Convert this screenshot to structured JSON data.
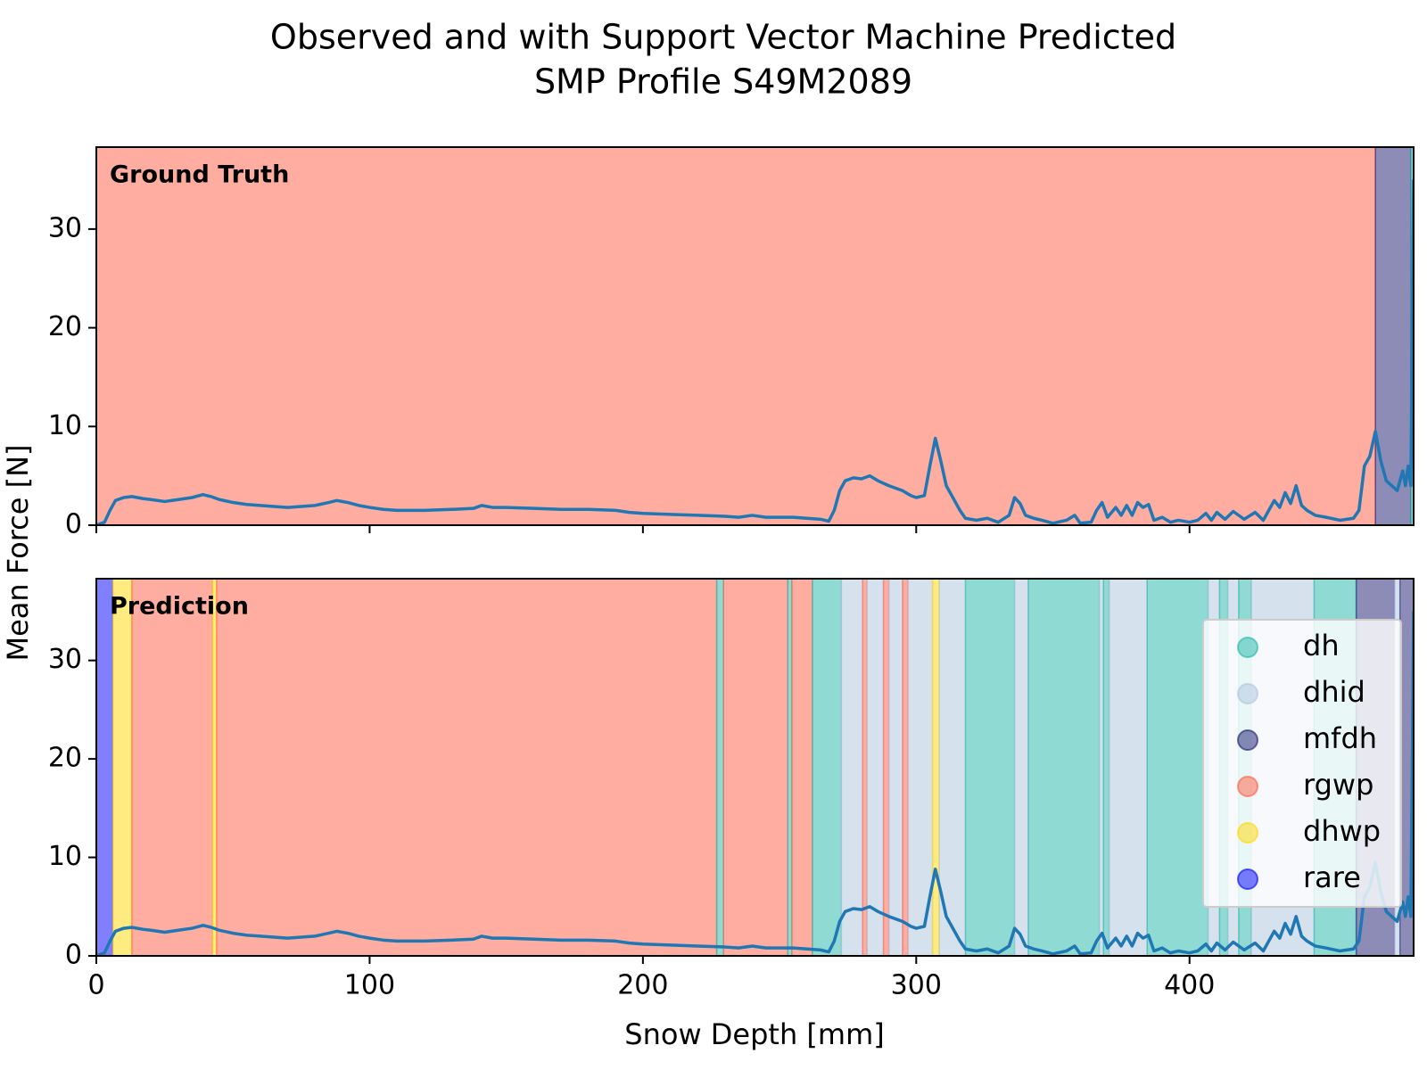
{
  "chart_data": {
    "type": "line",
    "title": [
      "Observed and with Support Vector Machine Predicted",
      "SMP Profile S49M2089"
    ],
    "xlabel": "Snow Depth [mm]",
    "ylabel": "Mean Force [N]",
    "xlim": [
      0,
      482
    ],
    "xticks": [
      0,
      100,
      200,
      300,
      400
    ],
    "ylim": [
      0,
      38.3
    ],
    "yticks": [
      0,
      10,
      20,
      30
    ],
    "x": [
      0,
      3,
      5,
      7,
      10,
      13,
      17,
      20,
      25,
      30,
      35,
      39,
      42,
      45,
      50,
      55,
      60,
      65,
      70,
      75,
      80,
      85,
      88,
      92,
      96,
      100,
      105,
      110,
      120,
      130,
      138,
      141,
      145,
      150,
      160,
      170,
      180,
      190,
      195,
      200,
      210,
      220,
      230,
      235,
      240,
      245,
      250,
      255,
      260,
      265,
      268,
      270,
      272,
      274,
      277,
      280,
      283,
      286,
      290,
      295,
      298,
      300,
      303,
      305,
      307,
      309,
      311,
      314,
      316,
      318,
      322,
      326,
      330,
      334,
      336,
      338,
      340,
      343,
      346,
      350,
      355,
      358,
      360,
      364,
      366,
      368,
      370,
      373,
      375,
      377,
      379,
      381,
      383,
      385,
      387,
      390,
      393,
      396,
      400,
      403,
      406,
      408,
      410,
      413,
      416,
      420,
      424,
      427,
      429,
      431,
      433,
      435,
      437,
      439,
      441,
      443,
      446,
      450,
      455,
      460,
      462,
      464,
      466,
      468,
      470,
      472,
      474,
      476,
      478,
      479,
      480,
      481,
      482
    ],
    "series": [
      {
        "color": "#1f77b4",
        "values": [
          0,
          0.3,
          1.5,
          2.5,
          2.8,
          2.9,
          2.7,
          2.6,
          2.4,
          2.6,
          2.8,
          3.1,
          2.9,
          2.6,
          2.3,
          2.1,
          2,
          1.9,
          1.8,
          1.9,
          2,
          2.3,
          2.5,
          2.3,
          2,
          1.8,
          1.6,
          1.5,
          1.5,
          1.6,
          1.7,
          2,
          1.8,
          1.8,
          1.7,
          1.6,
          1.6,
          1.5,
          1.3,
          1.2,
          1.1,
          1,
          0.9,
          0.8,
          1,
          0.8,
          0.8,
          0.8,
          0.7,
          0.6,
          0.4,
          1.5,
          3.5,
          4.5,
          4.8,
          4.7,
          5,
          4.5,
          4,
          3.5,
          3,
          2.8,
          3,
          6,
          8.8,
          6.5,
          4,
          2.5,
          1.5,
          0.7,
          0.5,
          0.7,
          0.3,
          1,
          2.8,
          2.2,
          1,
          0.7,
          0.5,
          0.2,
          0.5,
          1,
          0.2,
          0.3,
          1.5,
          2.3,
          0.8,
          1.8,
          1,
          2,
          1,
          2.3,
          1.8,
          2.1,
          0.5,
          0.8,
          0.3,
          0.5,
          0.3,
          0.5,
          1.2,
          0.5,
          1.3,
          0.6,
          1.4,
          0.6,
          1.3,
          0.5,
          1.5,
          2.5,
          1.8,
          3.3,
          2.2,
          4,
          2,
          1.5,
          1,
          0.8,
          0.5,
          0.7,
          1.5,
          6,
          7,
          9.5,
          6.5,
          4.5,
          4,
          3.5,
          5.5,
          4,
          6,
          4,
          35
        ]
      }
    ],
    "classes": [
      {
        "name": "dh",
        "color": "#1fb5a8"
      },
      {
        "name": "dhid",
        "color": "#adc3dd"
      },
      {
        "name": "mfdh",
        "color": "#191970"
      },
      {
        "name": "rgwp",
        "color": "#ff5c41"
      },
      {
        "name": "dhwp",
        "color": "#ffd700"
      },
      {
        "name": "rare",
        "color": "#0000ff"
      }
    ],
    "legend": "lower right",
    "panels": [
      {
        "label": "Ground Truth",
        "spans": [
          {
            "class": "rgwp",
            "from": 0,
            "to": 468
          },
          {
            "class": "mfdh",
            "from": 468,
            "to": 481
          },
          {
            "class": "dh",
            "from": 481,
            "to": 482
          }
        ]
      },
      {
        "label": "Prediction",
        "spans": [
          {
            "class": "rare",
            "from": 0,
            "to": 6
          },
          {
            "class": "dhwp",
            "from": 6,
            "to": 13
          },
          {
            "class": "rgwp",
            "from": 13,
            "to": 42.5
          },
          {
            "class": "dhwp",
            "from": 42.5,
            "to": 44
          },
          {
            "class": "rgwp",
            "from": 44,
            "to": 227
          },
          {
            "class": "dh",
            "from": 227,
            "to": 229.5
          },
          {
            "class": "rgwp",
            "from": 229.5,
            "to": 253
          },
          {
            "class": "dh",
            "from": 253,
            "to": 254.5
          },
          {
            "class": "rgwp",
            "from": 254.5,
            "to": 262
          },
          {
            "class": "dh",
            "from": 262,
            "to": 272.6
          },
          {
            "class": "dhid",
            "from": 272.6,
            "to": 280.4
          },
          {
            "class": "rgwp",
            "from": 280.4,
            "to": 282
          },
          {
            "class": "dhid",
            "from": 282,
            "to": 288
          },
          {
            "class": "rgwp",
            "from": 288,
            "to": 290
          },
          {
            "class": "dhid",
            "from": 290,
            "to": 295
          },
          {
            "class": "rgwp",
            "from": 295,
            "to": 297
          },
          {
            "class": "dhid",
            "from": 297,
            "to": 306
          },
          {
            "class": "dhwp",
            "from": 306,
            "to": 308.4
          },
          {
            "class": "dhid",
            "from": 308.4,
            "to": 318
          },
          {
            "class": "dh",
            "from": 318,
            "to": 336
          },
          {
            "class": "dhid",
            "from": 336,
            "to": 341
          },
          {
            "class": "dh",
            "from": 341,
            "to": 367
          },
          {
            "class": "dhid",
            "from": 367,
            "to": 368.5
          },
          {
            "class": "dh",
            "from": 368.5,
            "to": 370.6
          },
          {
            "class": "dhid",
            "from": 370.6,
            "to": 384.5
          },
          {
            "class": "dh",
            "from": 384.5,
            "to": 406.8
          },
          {
            "class": "dhid",
            "from": 406.8,
            "to": 411
          },
          {
            "class": "dh",
            "from": 411,
            "to": 414
          },
          {
            "class": "dhid",
            "from": 414,
            "to": 418
          },
          {
            "class": "dh",
            "from": 418,
            "to": 422.6
          },
          {
            "class": "dhid",
            "from": 422.6,
            "to": 445.6
          },
          {
            "class": "dh",
            "from": 445.6,
            "to": 461
          },
          {
            "class": "mfdh",
            "from": 461,
            "to": 475
          },
          {
            "class": "dhid",
            "from": 475,
            "to": 477
          },
          {
            "class": "mfdh",
            "from": 477,
            "to": 482
          }
        ]
      }
    ]
  }
}
